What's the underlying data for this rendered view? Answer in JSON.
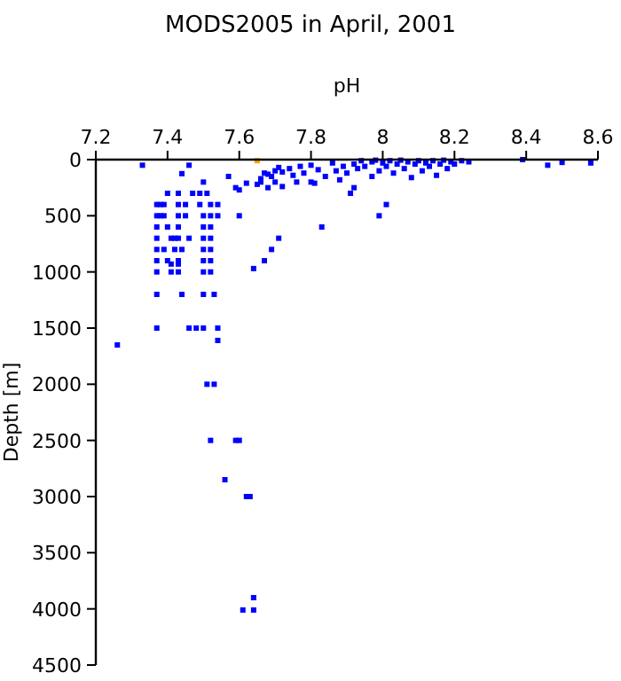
{
  "chart_data": {
    "type": "scatter",
    "title": "MODS2005 in April, 2001",
    "xlabel": "pH",
    "ylabel": "Depth [m]",
    "marker": "square",
    "xlim": [
      7.2,
      8.6
    ],
    "xticks": [
      7.2,
      7.4,
      7.6,
      7.8,
      8,
      8.2,
      8.4,
      8.6
    ],
    "ylim": [
      4500,
      0
    ],
    "yticks": [
      0,
      500,
      1000,
      1500,
      2000,
      2500,
      3000,
      3500,
      4000,
      4500
    ],
    "series": [
      {
        "color": "#0000ff",
        "x": [
          7.33,
          7.46,
          7.44,
          7.5,
          7.57,
          7.4,
          7.43,
          7.47,
          7.49,
          7.51,
          7.37,
          7.38,
          7.39,
          7.43,
          7.45,
          7.49,
          7.52,
          7.54,
          7.37,
          7.38,
          7.39,
          7.43,
          7.45,
          7.5,
          7.52,
          7.54,
          7.37,
          7.4,
          7.43,
          7.5,
          7.52,
          7.37,
          7.41,
          7.42,
          7.43,
          7.46,
          7.5,
          7.52,
          7.37,
          7.39,
          7.42,
          7.44,
          7.5,
          7.52,
          7.37,
          7.4,
          7.43,
          7.5,
          7.52,
          7.41,
          7.43,
          7.37,
          7.41,
          7.43,
          7.5,
          7.52,
          7.37,
          7.44,
          7.5,
          7.53,
          7.6,
          7.71,
          7.69,
          7.67,
          7.64,
          7.83,
          7.99,
          8.01,
          7.91,
          8.39,
          8.46,
          8.5,
          8.58,
          7.26,
          7.37,
          7.46,
          7.48,
          7.5,
          7.54,
          7.54,
          7.51,
          7.53,
          7.52,
          7.59,
          7.6,
          7.56,
          7.62,
          7.63,
          7.64,
          7.61,
          7.64,
          7.59,
          7.6,
          7.62,
          7.65,
          7.66,
          7.66,
          7.67,
          7.68,
          7.69,
          7.7,
          7.7,
          7.71,
          7.72,
          7.74,
          7.75,
          7.77,
          7.78,
          7.8,
          7.8,
          7.82,
          7.84,
          7.86,
          7.87,
          7.88,
          7.89,
          7.9,
          7.92,
          7.93,
          7.94,
          7.95,
          7.97,
          7.97,
          7.98,
          7.99,
          8,
          8.01,
          8.02,
          8.03,
          8.04,
          8.05,
          8.06,
          8.07,
          8.08,
          8.09,
          8.1,
          8.11,
          8.12,
          8.13,
          8.14,
          8.15,
          8.16,
          8.17,
          8.18,
          8.19,
          8.2,
          8.22,
          8.24,
          7.68,
          7.72,
          7.76,
          7.92,
          7.81
        ],
        "values": [
          50,
          50,
          125,
          200,
          150,
          300,
          300,
          300,
          300,
          300,
          400,
          400,
          400,
          400,
          400,
          400,
          400,
          400,
          500,
          500,
          500,
          500,
          500,
          500,
          500,
          500,
          600,
          600,
          600,
          600,
          600,
          700,
          700,
          700,
          700,
          700,
          700,
          700,
          800,
          800,
          800,
          800,
          800,
          800,
          900,
          900,
          900,
          900,
          900,
          930,
          930,
          1000,
          1000,
          1000,
          1000,
          1000,
          1200,
          1200,
          1200,
          1200,
          500,
          700,
          800,
          900,
          970,
          600,
          500,
          400,
          300,
          0,
          50,
          25,
          30,
          1650,
          1500,
          1500,
          1500,
          1500,
          1500,
          1610,
          2000,
          2000,
          2500,
          2500,
          2500,
          2850,
          3000,
          3000,
          3900,
          4010,
          4010,
          250,
          270,
          210,
          220,
          170,
          200,
          120,
          130,
          150,
          100,
          200,
          70,
          110,
          80,
          140,
          60,
          120,
          50,
          200,
          90,
          150,
          30,
          100,
          180,
          60,
          120,
          40,
          80,
          10,
          60,
          20,
          150,
          5,
          100,
          30,
          60,
          10,
          120,
          40,
          5,
          80,
          20,
          160,
          40,
          10,
          100,
          30,
          60,
          10,
          140,
          40,
          5,
          80,
          20,
          40,
          10,
          20,
          250,
          240,
          200,
          250,
          210
        ]
      },
      {
        "color": "#ffa500",
        "x": [
          7.65
        ],
        "values": [
          10
        ]
      }
    ]
  }
}
